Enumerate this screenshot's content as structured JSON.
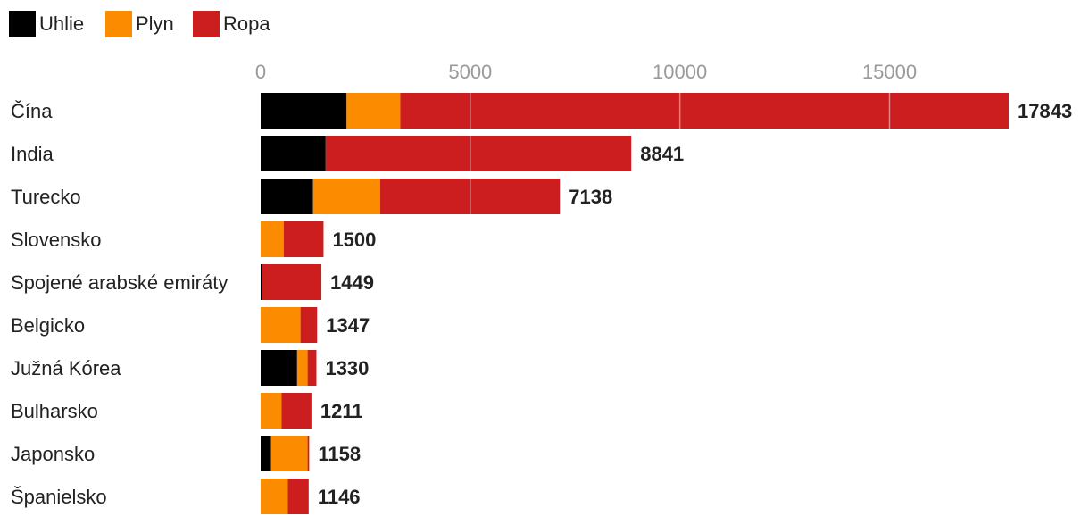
{
  "colors": {
    "Uhlie": "#000000",
    "Plyn": "#fb8c00",
    "Ropa": "#cc1e1e",
    "grid": "#ffffff",
    "tick_text": "#9a9a9a",
    "label_text": "#222222"
  },
  "chart_data": {
    "type": "bar",
    "orientation": "horizontal",
    "stacked": true,
    "legend": [
      "Uhlie",
      "Plyn",
      "Ropa"
    ],
    "legend_position": "top-left",
    "xlim": [
      0,
      17843
    ],
    "x_ticks": [
      "0",
      "5000",
      "10000",
      "15000"
    ],
    "x_tick_values": [
      0,
      5000,
      10000,
      15000
    ],
    "grid": true,
    "categories": [
      "Čína",
      "India",
      "Turecko",
      "Slovensko",
      "Spojené arabské emiráty",
      "Belgicko",
      "Južná Kórea",
      "Bulharsko",
      "Japonsko",
      "Španielsko"
    ],
    "series": [
      {
        "name": "Uhlie",
        "values": [
          2050,
          1550,
          1250,
          0,
          30,
          0,
          870,
          0,
          250,
          0
        ]
      },
      {
        "name": "Plyn",
        "values": [
          1280,
          0,
          1600,
          550,
          0,
          950,
          250,
          500,
          870,
          650
        ]
      },
      {
        "name": "Ropa",
        "values": [
          14513,
          7291,
          4288,
          950,
          1419,
          397,
          210,
          711,
          38,
          496
        ]
      }
    ],
    "totals": [
      "17843",
      "8841",
      "7138",
      "1500",
      "1449",
      "1347",
      "1330",
      "1211",
      "1158",
      "1146"
    ]
  }
}
